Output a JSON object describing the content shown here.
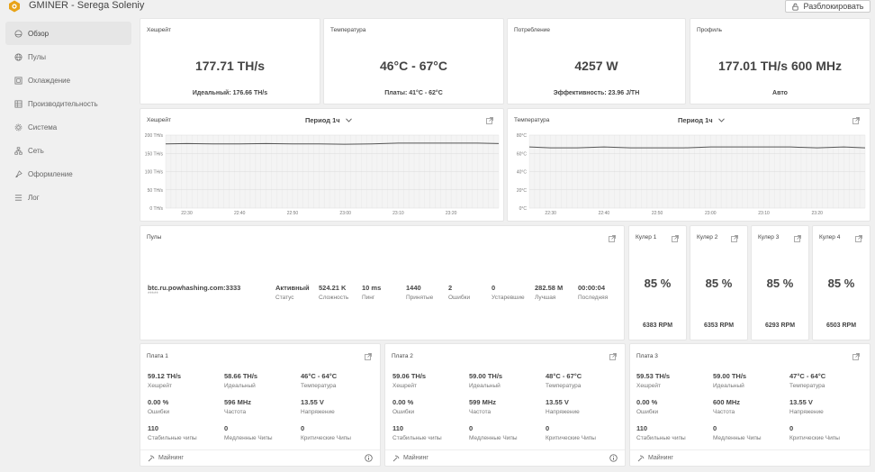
{
  "app": {
    "title": "GMINER - Serega Soleniy",
    "unlock_label": "Разблокировать"
  },
  "sidebar": {
    "items": [
      {
        "label": "Обзор",
        "icon": "dashboard-icon"
      },
      {
        "label": "Пулы",
        "icon": "globe-icon"
      },
      {
        "label": "Охлаждение",
        "icon": "cooling-icon"
      },
      {
        "label": "Производительность",
        "icon": "performance-icon"
      },
      {
        "label": "Система",
        "icon": "gear-icon"
      },
      {
        "label": "Сеть",
        "icon": "network-icon"
      },
      {
        "label": "Оформление",
        "icon": "brush-icon"
      },
      {
        "label": "Лог",
        "icon": "list-icon"
      }
    ]
  },
  "summary": {
    "hashrate": {
      "title": "Хешрейт",
      "value": "177.71 TH/s",
      "sub": "Идеальный: 176.66 TH/s"
    },
    "temperature": {
      "title": "Температура",
      "value": "46°C - 67°C",
      "sub": "Платы: 41°C - 62°C"
    },
    "power": {
      "title": "Потребление",
      "value": "4257 W",
      "sub": "Эффективность: 23.96 J/TH"
    },
    "profile": {
      "title": "Профиль",
      "value": "177.01 TH/s 600 MHz",
      "sub": "Авто"
    }
  },
  "charts": {
    "hashrate": {
      "title": "Хешрейт",
      "period": "Период 1ч",
      "yticks": [
        "200 TH/s",
        "150 TH/s",
        "100 TH/s",
        "50 TH/s",
        "0 TH/s"
      ],
      "xticks": [
        "22:30",
        "22:40",
        "22:50",
        "23:00",
        "23:10",
        "23:20"
      ]
    },
    "temperature": {
      "title": "Температура",
      "period": "Период 1ч",
      "yticks": [
        "80°C",
        "60°C",
        "40°C",
        "20°C",
        "0°C"
      ],
      "xticks": [
        "22:30",
        "22:40",
        "22:50",
        "23:00",
        "23:10",
        "23:20"
      ]
    }
  },
  "chart_data": [
    {
      "type": "line",
      "title": "Хешрейт",
      "xlabel": "",
      "ylabel": "",
      "ylim": [
        0,
        200
      ],
      "x": [
        "22:26",
        "22:30",
        "22:35",
        "22:40",
        "22:45",
        "22:50",
        "22:55",
        "23:00",
        "23:05",
        "23:10",
        "23:15",
        "23:20",
        "23:25",
        "23:29"
      ],
      "series": [
        {
          "values": [
            176,
            177,
            176,
            176,
            177,
            176,
            176,
            175,
            176,
            178,
            178,
            178,
            178,
            177
          ]
        }
      ],
      "grid": true
    },
    {
      "type": "line",
      "title": "Температура",
      "xlabel": "",
      "ylabel": "",
      "ylim": [
        0,
        80
      ],
      "x": [
        "22:26",
        "22:30",
        "22:35",
        "22:40",
        "22:45",
        "22:50",
        "22:55",
        "23:00",
        "23:05",
        "23:10",
        "23:15",
        "23:20",
        "23:25",
        "23:29"
      ],
      "series": [
        {
          "values": [
            67,
            66,
            66,
            67,
            66,
            66,
            66,
            67,
            67,
            67,
            67,
            66,
            67,
            66
          ]
        }
      ],
      "grid": true
    }
  ],
  "pools": {
    "title": "Пулы",
    "row": {
      "url": "btc.ru.powhashing.com:3333",
      "user": "*****",
      "status": "Активный",
      "status_label": "Статус",
      "difficulty": "524.21 K",
      "difficulty_label": "Сложность",
      "ping": "10 ms",
      "ping_label": "Пинг",
      "accepted": "1440",
      "accepted_label": "Принятые",
      "errors": "2",
      "errors_label": "Ошибки",
      "stale": "0",
      "stale_label": "Устаревшие",
      "best": "282.58 M",
      "best_label": "Лучшая",
      "last": "00:00:04",
      "last_label": "Последняя"
    }
  },
  "coolers": [
    {
      "title": "Кулер 1",
      "value": "85 %",
      "rpm": "6383 RPM"
    },
    {
      "title": "Кулер 2",
      "value": "85 %",
      "rpm": "6353 RPM"
    },
    {
      "title": "Кулер 3",
      "value": "85 %",
      "rpm": "6293 RPM"
    },
    {
      "title": "Кулер 4",
      "value": "85 %",
      "rpm": "6503 RPM"
    }
  ],
  "boards": [
    {
      "title": "Плата 1",
      "hashrate": "59.12 TH/s",
      "ideal": "58.66 TH/s",
      "temp": "46°C - 64°C",
      "errors": "0.00 %",
      "freq": "596 MHz",
      "voltage": "13.55 V",
      "stable": "110",
      "slow": "0",
      "critical": "0",
      "footer": "Майнинг"
    },
    {
      "title": "Плата 2",
      "hashrate": "59.06 TH/s",
      "ideal": "59.00 TH/s",
      "temp": "48°C - 67°C",
      "errors": "0.00 %",
      "freq": "599 MHz",
      "voltage": "13.55 V",
      "stable": "110",
      "slow": "0",
      "critical": "0",
      "footer": "Майнинг"
    },
    {
      "title": "Плата 3",
      "hashrate": "59.53 TH/s",
      "ideal": "59.00 TH/s",
      "temp": "47°C - 64°C",
      "errors": "0.00 %",
      "freq": "600 MHz",
      "voltage": "13.55 V",
      "stable": "110",
      "slow": "0",
      "critical": "0",
      "footer": "Майнинг"
    }
  ],
  "board_labels": {
    "hashrate": "Хешрейт",
    "ideal": "Идеальный",
    "temp": "Температура",
    "errors": "Ошибки",
    "freq": "Частота",
    "voltage": "Напряжение",
    "stable": "Стабильные чипы",
    "slow": "Медленные Чипы",
    "critical": "Критические Чипы"
  },
  "colors": {
    "accent": "#e8a317",
    "line": "#555555",
    "grid": "#e4e4e4",
    "plot_bg": "#f4f4f4"
  }
}
